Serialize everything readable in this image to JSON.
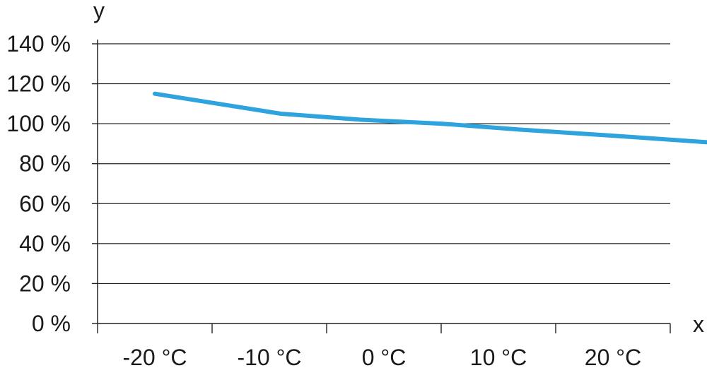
{
  "chart_data": {
    "type": "line",
    "xlabel": "x",
    "ylabel": "y",
    "categories": [
      "-20 °C",
      "-10 °C",
      "0 °C",
      "10 °C",
      "20 °C"
    ],
    "x": [
      -25,
      -14,
      -7,
      0,
      7,
      15,
      25
    ],
    "xlim": [
      -30,
      20
    ],
    "yticks": [
      "0 %",
      "20 %",
      "40 %",
      "60 %",
      "80 %",
      "100 %",
      "120 %",
      "140 %"
    ],
    "ylim": [
      0,
      140
    ],
    "grid": true,
    "series": [
      {
        "values": [
          115,
          105,
          102,
          100,
          97,
          94,
          90
        ],
        "color": "#2ea3dd"
      }
    ]
  }
}
